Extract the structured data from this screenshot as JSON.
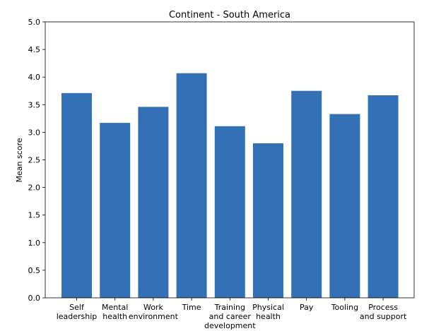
{
  "chart_data": {
    "type": "bar",
    "title": "Continent - South America",
    "xlabel": "",
    "ylabel": "Mean score",
    "ylim": [
      0,
      5
    ],
    "yticks": [
      "0.0",
      "0.5",
      "1.0",
      "1.5",
      "2.0",
      "2.5",
      "3.0",
      "3.5",
      "4.0",
      "4.5",
      "5.0"
    ],
    "grid": false,
    "legend": "none",
    "bar_color": "#3370b5",
    "categories": [
      [
        "Self",
        "leadership"
      ],
      [
        "Mental",
        "health"
      ],
      [
        "Work",
        "environment"
      ],
      [
        "Time"
      ],
      [
        "Training",
        "and career",
        "development"
      ],
      [
        "Physical",
        "health"
      ],
      [
        "Pay"
      ],
      [
        "Tooling"
      ],
      [
        "Process",
        "and support"
      ]
    ],
    "values": [
      3.71,
      3.17,
      3.46,
      4.07,
      3.11,
      2.8,
      3.75,
      3.33,
      3.67
    ]
  }
}
